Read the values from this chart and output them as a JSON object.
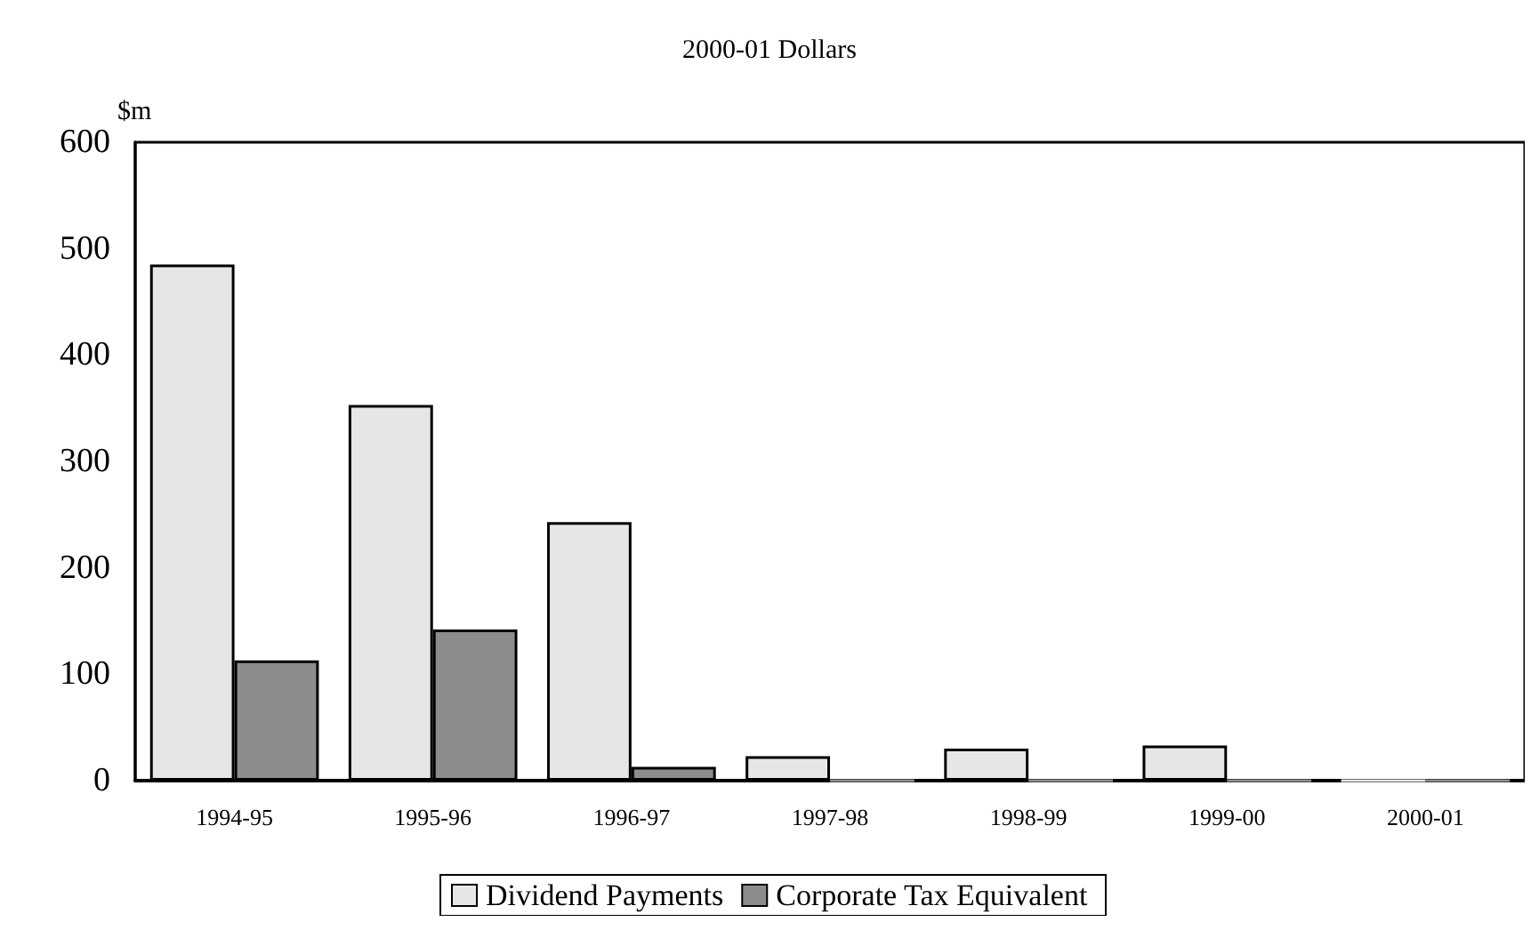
{
  "chart_data": {
    "type": "bar",
    "title": "2000-01 Dollars",
    "ylabel": "$m",
    "categories": [
      "1994-95",
      "1995-96",
      "1996-97",
      "1997-98",
      "1998-99",
      "1999-00",
      "2000-01"
    ],
    "series": [
      {
        "name": "Dividend Payments",
        "color": "#e6e6e6",
        "values": [
          485,
          353,
          243,
          23,
          30,
          33,
          0
        ]
      },
      {
        "name": "Corporate Tax Equivalent",
        "color": "#8c8c8c",
        "values": [
          113,
          142,
          13,
          0,
          0,
          0,
          0
        ]
      }
    ],
    "ylim": [
      0,
      600
    ],
    "yticks": [
      0,
      100,
      200,
      300,
      400,
      500,
      600
    ],
    "grid": false,
    "legend": "bottom"
  }
}
